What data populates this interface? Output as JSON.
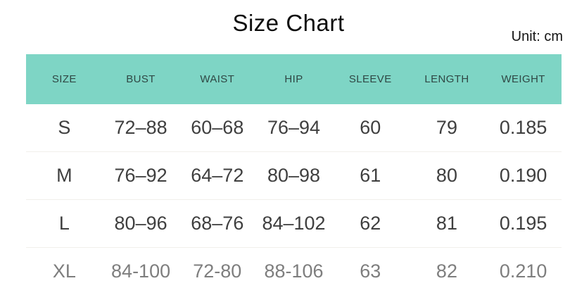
{
  "header": {
    "title": "Size Chart",
    "unit_label": "Unit: cm"
  },
  "chart_data": {
    "type": "table",
    "title": "Size Chart",
    "unit": "cm",
    "columns": [
      "SIZE",
      "BUST",
      "WAIST",
      "HIP",
      "SLEEVE",
      "LENGTH",
      "WEIGHT"
    ],
    "rows": [
      [
        "S",
        "72–88",
        "60–68",
        "76–94",
        "60",
        "79",
        "0.185"
      ],
      [
        "M",
        "76–92",
        "64–72",
        "80–98",
        "61",
        "80",
        "0.190"
      ],
      [
        "L",
        "80–96",
        "68–76",
        "84–102",
        "62",
        "81",
        "0.195"
      ],
      [
        "XL",
        "84-100",
        "72-80",
        "88-106",
        "63",
        "82",
        "0.210"
      ]
    ]
  },
  "colors": {
    "header_bg": "#7ed5c5",
    "header_text": "#2f4744",
    "body_text": "#3f3f3f",
    "xl_row_text": "#7e7e7e"
  }
}
